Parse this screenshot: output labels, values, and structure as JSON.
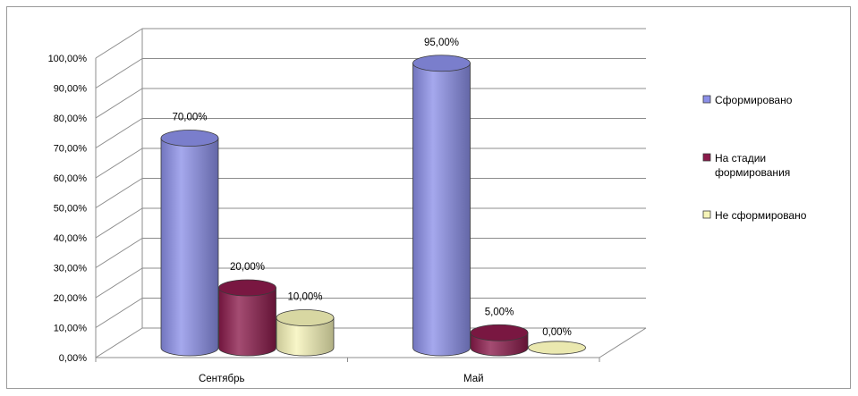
{
  "chart_data": {
    "type": "bar",
    "style": "3d-cylinder",
    "categories": [
      "Сентябрь",
      "Май"
    ],
    "series": [
      {
        "name": "Сформировано",
        "values": [
          70,
          95
        ],
        "labels": [
          "70,00%",
          "95,00%"
        ],
        "color": "#8b8fe8"
      },
      {
        "name": "На стадии формирования",
        "legend_lines": [
          "На стадии",
          "формирования"
        ],
        "values": [
          20,
          5
        ],
        "labels": [
          "20,00%",
          "5,00%"
        ],
        "color": "#8a1a4a"
      },
      {
        "name": "Не сформировано",
        "values": [
          10,
          0
        ],
        "labels": [
          "10,00%",
          "0,00%"
        ],
        "color": "#f6f4b8"
      }
    ],
    "yticks": [
      "0,00%",
      "10,00%",
      "20,00%",
      "30,00%",
      "40,00%",
      "50,00%",
      "60,00%",
      "70,00%",
      "80,00%",
      "90,00%",
      "100,00%"
    ],
    "ylim": [
      0,
      100
    ],
    "grid": true,
    "legend_position": "right"
  }
}
